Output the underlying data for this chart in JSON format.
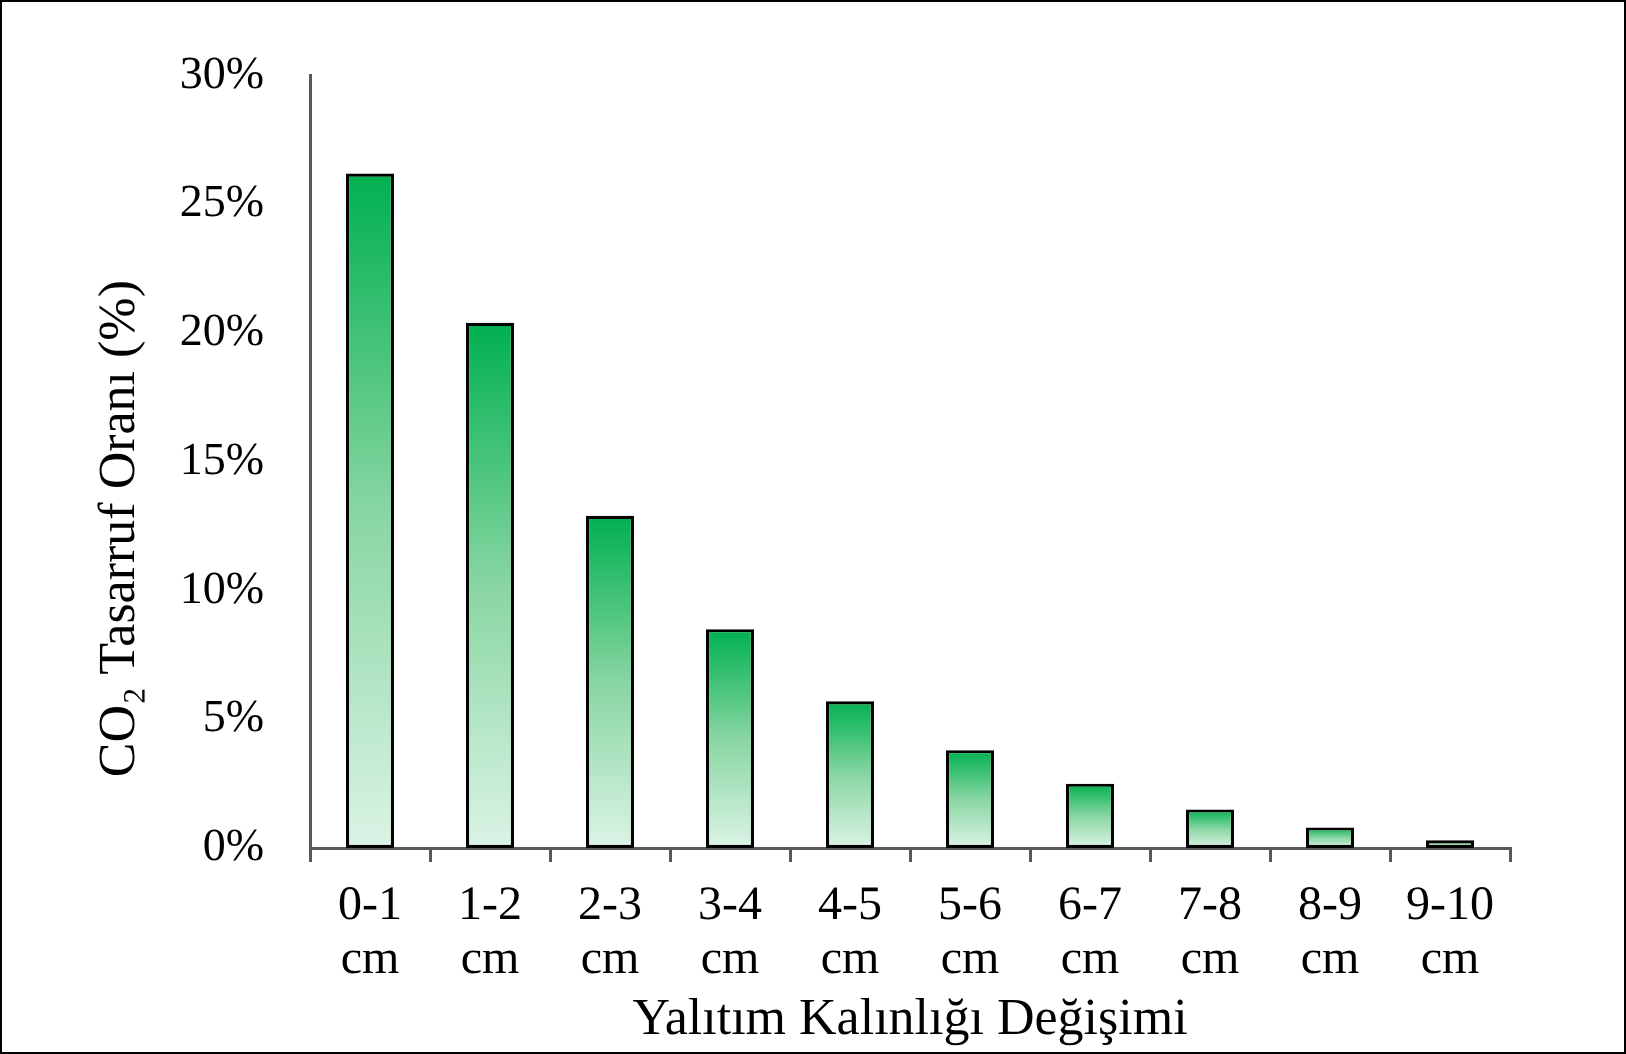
{
  "chart_data": {
    "type": "bar",
    "xlabel": "Yalıtım Kalınlığı Değişimi",
    "ylabel": "CO₂ Tasarruf Oranı (%)",
    "categories": [
      "0-1 cm",
      "1-2 cm",
      "2-3 cm",
      "3-4 cm",
      "4-5 cm",
      "5-6 cm",
      "6-7 cm",
      "7-8 cm",
      "8-9 cm",
      "9-10 cm"
    ],
    "values": [
      26.2,
      20.4,
      12.9,
      8.5,
      5.7,
      3.8,
      2.5,
      1.5,
      0.8,
      0.3
    ],
    "color": "#00b050",
    "ylim": [
      0,
      30
    ],
    "yticks": [
      {
        "value": 0,
        "label": "0%"
      },
      {
        "value": 5,
        "label": "5%"
      },
      {
        "value": 10,
        "label": "10%"
      },
      {
        "value": 15,
        "label": "15%"
      },
      {
        "value": 20,
        "label": "20%"
      },
      {
        "value": 25,
        "label": "25%"
      },
      {
        "value": 30,
        "label": "30%"
      }
    ],
    "grid": false,
    "legend": false
  }
}
